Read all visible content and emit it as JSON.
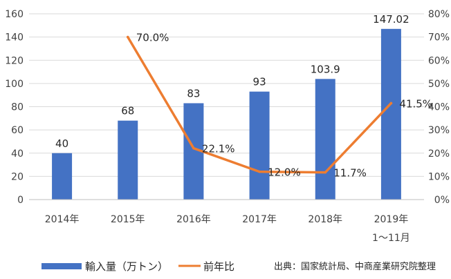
{
  "chart_data": {
    "type": "bar+line",
    "categories": [
      "2014年",
      "2015年",
      "2016年",
      "2017年",
      "2018年",
      "2019年"
    ],
    "category_sublabels": [
      "",
      "",
      "",
      "",
      "",
      "1〜11月"
    ],
    "series": [
      {
        "name": "輸入量（万トン）",
        "type": "bar",
        "axis": "left",
        "color": "#4472C4",
        "values": [
          40,
          68,
          83,
          93,
          103.9,
          147.02
        ],
        "labels": [
          "40",
          "68",
          "83",
          "93",
          "103.9",
          "147.02"
        ]
      },
      {
        "name": "前年比",
        "type": "line",
        "axis": "right",
        "color": "#ED7D31",
        "values": [
          null,
          70.0,
          22.1,
          12.0,
          11.7,
          41.5
        ],
        "labels": [
          "",
          "70.0%",
          "22.1%",
          "12.0%",
          "11.7%",
          "41.5%"
        ]
      }
    ],
    "y_left": {
      "min": 0,
      "max": 160,
      "step": 20,
      "ticks": [
        "0",
        "20",
        "40",
        "60",
        "80",
        "100",
        "120",
        "140",
        "160"
      ]
    },
    "y_right": {
      "min": 0,
      "max": 80,
      "step": 10,
      "ticks": [
        "0%",
        "10%",
        "20%",
        "30%",
        "40%",
        "50%",
        "60%",
        "70%",
        "80%"
      ]
    },
    "grid": true,
    "legend": "bottom-left",
    "source_note": "出典：国家統計局、中商産業研究院整理"
  }
}
